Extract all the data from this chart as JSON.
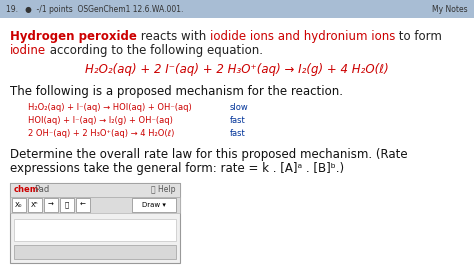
{
  "bg_color": "#ffffff",
  "header_color": "#a8bdd4",
  "header_text": "19.   ●  -/1 points  OSGenChem1 12.6.WA.001.",
  "header_right": "My Notes",
  "title_line1": [
    {
      "text": "Hydrogen peroxide",
      "color": "#cc0000",
      "bold": true
    },
    {
      "text": " reacts with ",
      "color": "#222222",
      "bold": false
    },
    {
      "text": "iodide ions and hydronium ions",
      "color": "#cc0000",
      "bold": false
    },
    {
      "text": " to form",
      "color": "#222222",
      "bold": false
    }
  ],
  "title_line2": [
    {
      "text": "iodine",
      "color": "#cc0000",
      "bold": false
    },
    {
      "text": " according to the following equation.",
      "color": "#222222",
      "bold": false
    }
  ],
  "equation": "H₂O₂(aq) + 2 I⁻(aq) + 2 H₃O⁺(aq) → I₂(g) + 4 H₂O(ℓ)",
  "eq_color": "#cc0000",
  "mechanism_intro": "The following is a proposed mechanism for the reaction.",
  "mechanism_steps": [
    {
      "eq": "H₂O₂(aq) + I⁻(aq) → HOI(aq) + OH⁻(aq)",
      "rate": "slow"
    },
    {
      "eq": "HOI(aq) + I⁻(aq) → I₂(g) + OH⁻(aq)",
      "rate": "fast"
    },
    {
      "eq": "2 OH⁻(aq) + 2 H₃O⁺(aq) → 4 H₂O(ℓ)",
      "rate": "fast"
    }
  ],
  "mech_color": "#cc0000",
  "rate_color": "#003399",
  "question1": "Determine the overall rate law for this proposed mechanism. (Rate",
  "question2": "expressions take the general form: rate = k . [A]ᵃ . [B]ᵇ.)",
  "chempad_label": "chem",
  "chempad_label2": "Pad",
  "help_label": "ⓘ Help",
  "draw_label": "Draw ▾",
  "toolbar_btns": [
    "X₀",
    "Xⁿ",
    "→",
    "⭡",
    "←"
  ]
}
